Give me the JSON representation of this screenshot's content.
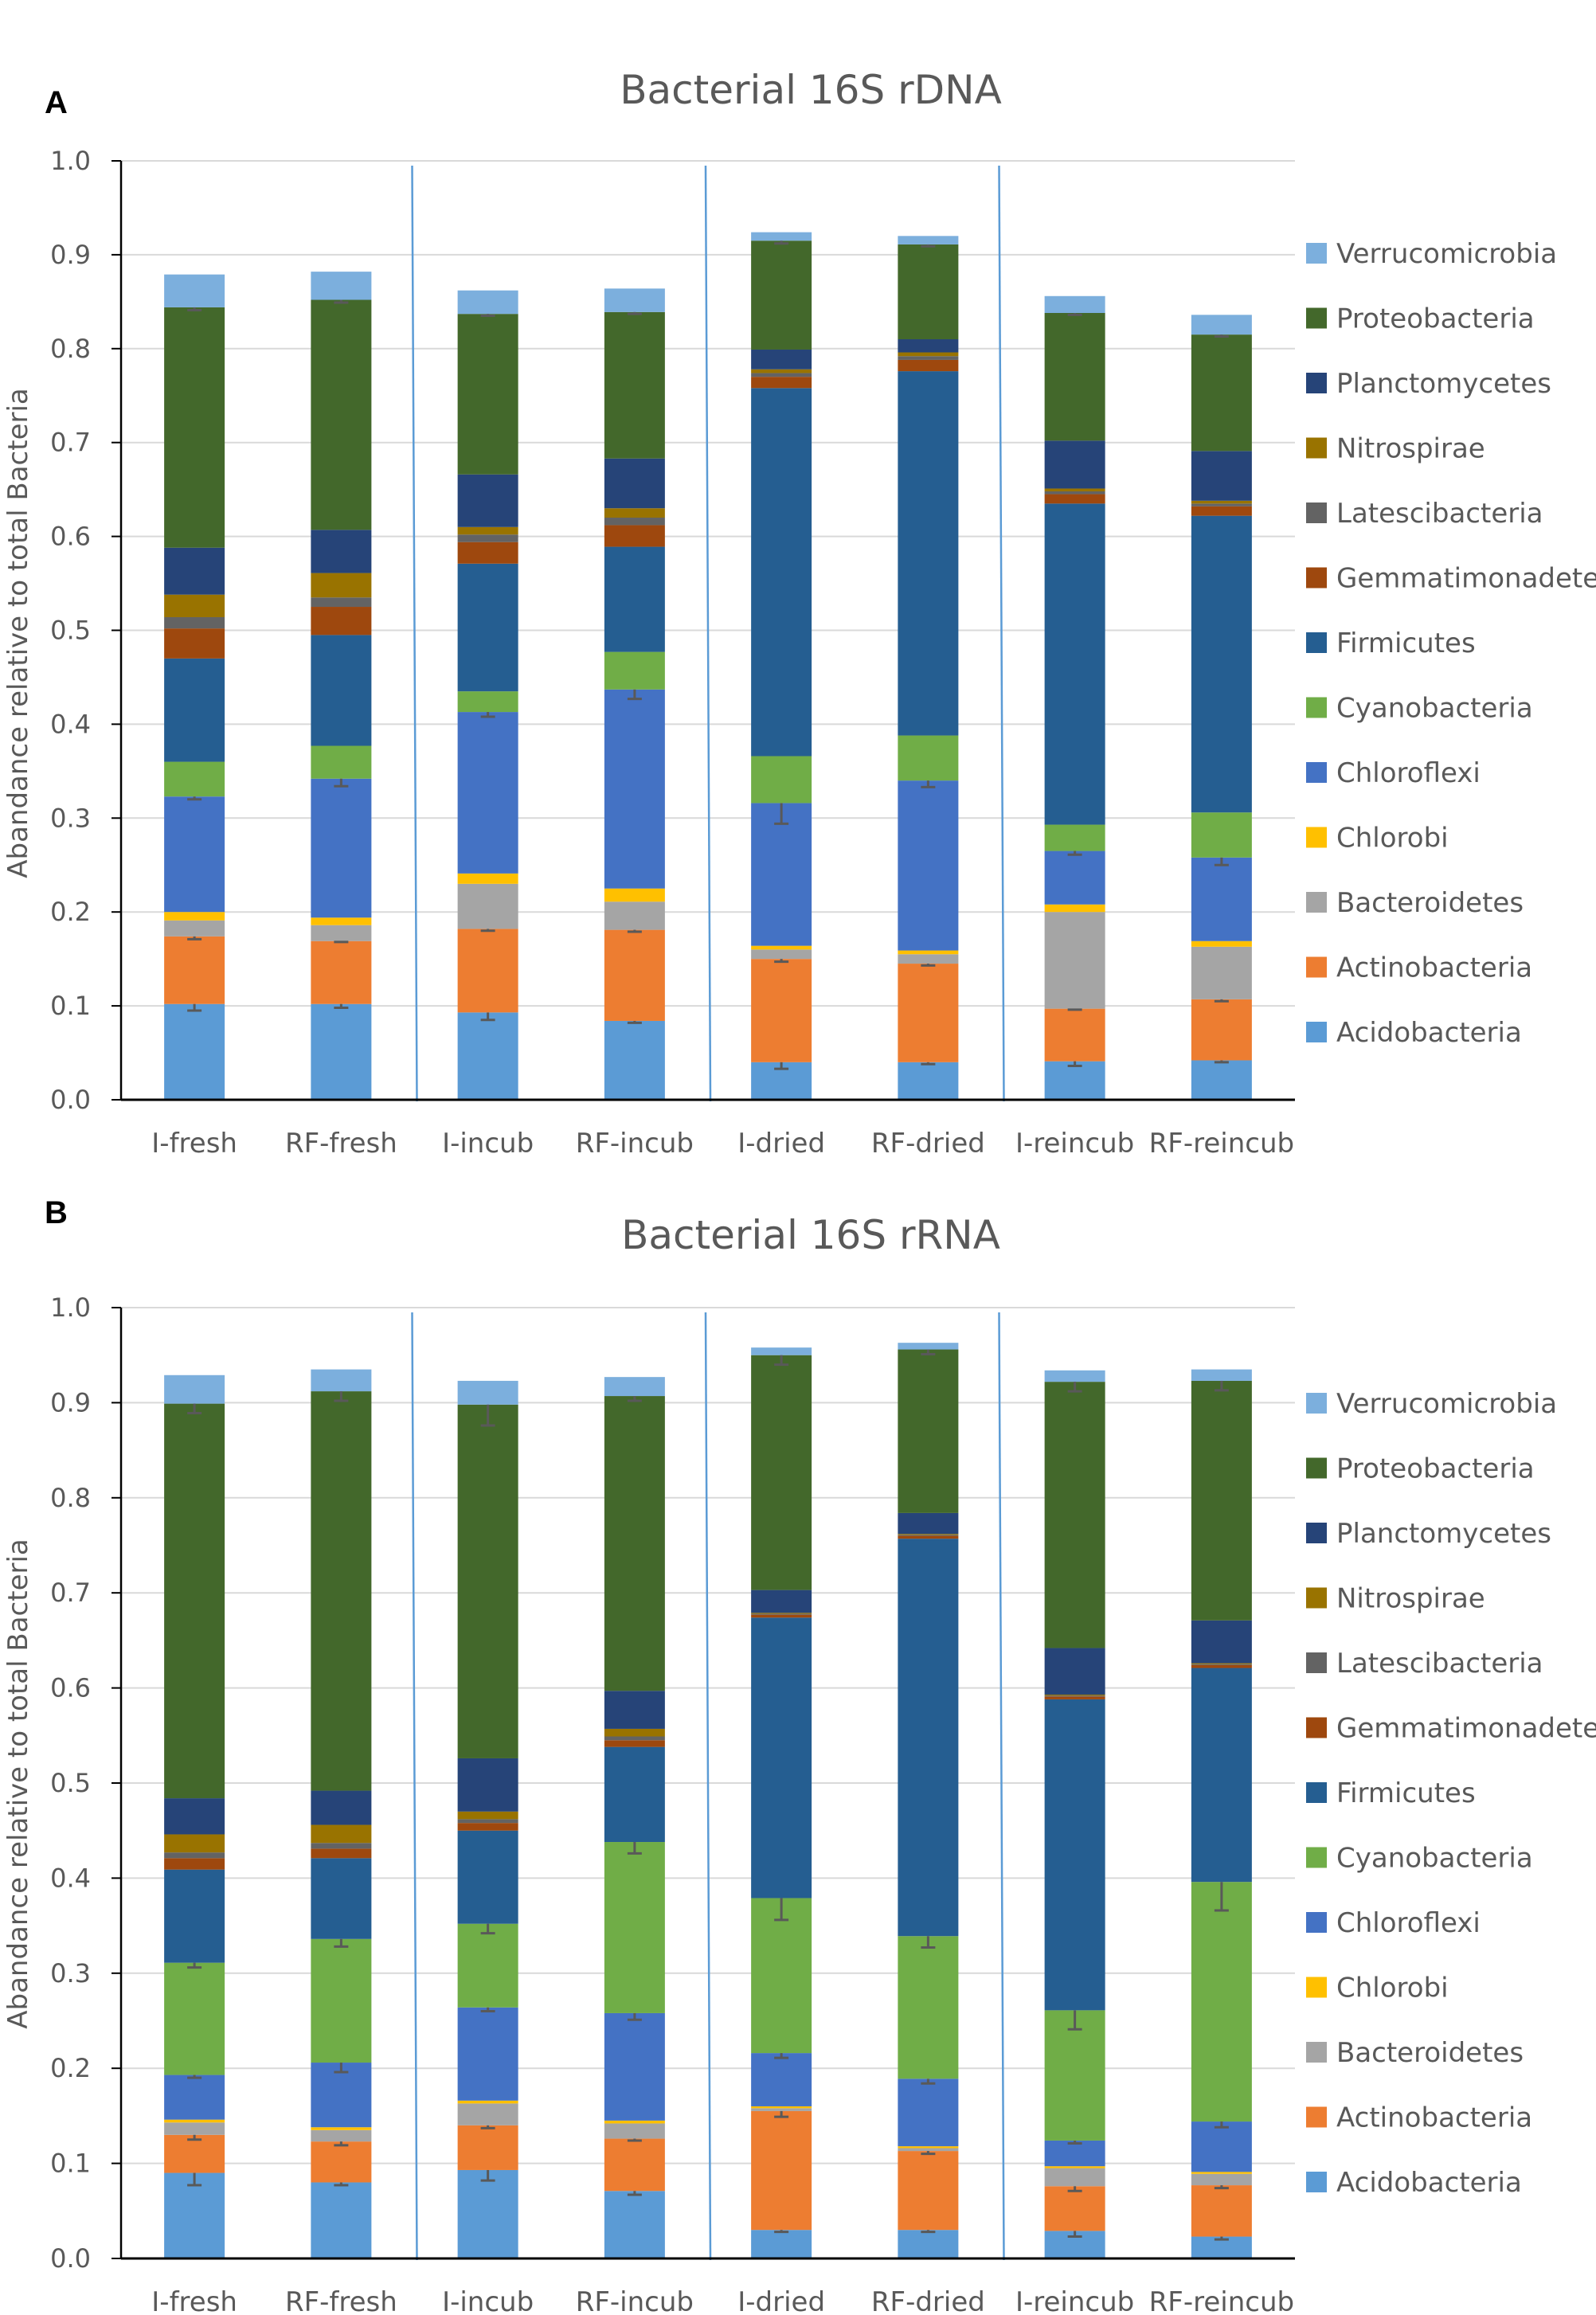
{
  "chart_data": [
    {
      "panel": "A",
      "type": "bar",
      "stacked": true,
      "title": "Bacterial 16S rDNA",
      "ylabel": "Abandance relative to total Bacteria",
      "xlabel": "",
      "ylim": [
        0,
        1.0
      ],
      "yticks": [
        "0.0",
        "0.1",
        "0.2",
        "0.3",
        "0.4",
        "0.5",
        "0.6",
        "0.7",
        "0.8",
        "0.9",
        "1.0"
      ],
      "grid": true,
      "legend_position": "right",
      "categories": [
        "I-fresh",
        "RF-fresh",
        "I-incub",
        "RF-incub",
        "I-dried",
        "RF-dried",
        "I-reincub",
        "RF-reincub"
      ],
      "group_separators_after": [
        1,
        3,
        5
      ],
      "series": [
        {
          "name": "Acidobacteria",
          "color": "#5B9BD5",
          "values": [
            0.102,
            0.102,
            0.093,
            0.084,
            0.04,
            0.04,
            0.041,
            0.042
          ],
          "errors": [
            0.007,
            0.004,
            0.008,
            0.002,
            0.007,
            0.002,
            0.005,
            0.002
          ]
        },
        {
          "name": "Actinobacteria",
          "color": "#ED7D31",
          "values": [
            0.072,
            0.067,
            0.089,
            0.097,
            0.11,
            0.105,
            0.056,
            0.065
          ],
          "errors": [
            0.003,
            0.001,
            0.002,
            0.002,
            0.003,
            0.002,
            0.001,
            0.002
          ]
        },
        {
          "name": "Bacteroidetes",
          "color": "#A5A5A5",
          "values": [
            0.017,
            0.017,
            0.048,
            0.03,
            0.01,
            0.01,
            0.103,
            0.056
          ],
          "errors": [
            0,
            0,
            0,
            0,
            0,
            0,
            0,
            0
          ]
        },
        {
          "name": "Chlorobi",
          "color": "#FFC000",
          "values": [
            0.009,
            0.008,
            0.011,
            0.014,
            0.004,
            0.004,
            0.008,
            0.006
          ],
          "errors": [
            0,
            0,
            0,
            0,
            0,
            0,
            0,
            0
          ]
        },
        {
          "name": "Chloroflexi",
          "color": "#4472C4",
          "values": [
            0.123,
            0.148,
            0.172,
            0.212,
            0.152,
            0.181,
            0.057,
            0.089
          ],
          "errors": [
            0.003,
            0.008,
            0.005,
            0.01,
            0.022,
            0.007,
            0.004,
            0.008
          ]
        },
        {
          "name": "Cyanobacteria",
          "color": "#70AD47",
          "values": [
            0.037,
            0.035,
            0.022,
            0.04,
            0.05,
            0.048,
            0.028,
            0.048
          ],
          "errors": [
            0,
            0,
            0,
            0,
            0,
            0,
            0,
            0
          ]
        },
        {
          "name": "Firmicutes",
          "color": "#255E91",
          "values": [
            0.11,
            0.118,
            0.136,
            0.112,
            0.392,
            0.388,
            0.342,
            0.316
          ],
          "errors": [
            0,
            0,
            0,
            0,
            0,
            0,
            0,
            0
          ]
        },
        {
          "name": "Gemmatimonadetes",
          "color": "#9E480E",
          "values": [
            0.032,
            0.03,
            0.023,
            0.023,
            0.012,
            0.012,
            0.01,
            0.01
          ],
          "errors": [
            0,
            0,
            0,
            0,
            0,
            0,
            0,
            0
          ]
        },
        {
          "name": "Latescibacteria",
          "color": "#636363",
          "values": [
            0.012,
            0.01,
            0.008,
            0.008,
            0.004,
            0.004,
            0.003,
            0.003
          ],
          "errors": [
            0,
            0,
            0,
            0,
            0,
            0,
            0,
            0
          ]
        },
        {
          "name": "Nitrospirae",
          "color": "#997300",
          "values": [
            0.024,
            0.026,
            0.008,
            0.01,
            0.004,
            0.004,
            0.003,
            0.003
          ],
          "errors": [
            0,
            0,
            0,
            0,
            0,
            0,
            0,
            0
          ]
        },
        {
          "name": "Planctomycetes",
          "color": "#264478",
          "values": [
            0.05,
            0.046,
            0.056,
            0.053,
            0.021,
            0.014,
            0.051,
            0.053
          ],
          "errors": [
            0,
            0,
            0,
            0,
            0,
            0,
            0,
            0
          ]
        },
        {
          "name": "Proteobacteria",
          "color": "#43682B",
          "values": [
            0.256,
            0.245,
            0.171,
            0.156,
            0.116,
            0.101,
            0.136,
            0.124
          ],
          "errors": [
            0.003,
            0.003,
            0.002,
            0.002,
            0.003,
            0.002,
            0.002,
            0.002
          ]
        },
        {
          "name": "Verrucomicrobia",
          "color": "#7CAFDD",
          "values": [
            0.035,
            0.03,
            0.025,
            0.025,
            0.009,
            0.009,
            0.018,
            0.021
          ],
          "errors": [
            0,
            0,
            0,
            0,
            0,
            0,
            0,
            0
          ]
        }
      ]
    },
    {
      "panel": "B",
      "type": "bar",
      "stacked": true,
      "title": "Bacterial 16S rRNA",
      "ylabel": "Abandance relative to total Bacteria",
      "xlabel": "",
      "ylim": [
        0,
        1.0
      ],
      "yticks": [
        "0.0",
        "0.1",
        "0.2",
        "0.3",
        "0.4",
        "0.5",
        "0.6",
        "0.7",
        "0.8",
        "0.9",
        "1.0"
      ],
      "grid": true,
      "legend_position": "right",
      "categories": [
        "I-fresh",
        "RF-fresh",
        "I-incub",
        "RF-incub",
        "I-dried",
        "RF-dried",
        "I-reincub",
        "RF-reincub"
      ],
      "group_separators_after": [
        1,
        3,
        5
      ],
      "series": [
        {
          "name": "Acidobacteria",
          "color": "#5B9BD5",
          "values": [
            0.09,
            0.08,
            0.093,
            0.071,
            0.03,
            0.03,
            0.029,
            0.023
          ],
          "errors": [
            0.013,
            0.003,
            0.011,
            0.004,
            0.002,
            0.002,
            0.006,
            0.003
          ]
        },
        {
          "name": "Actinobacteria",
          "color": "#ED7D31",
          "values": [
            0.04,
            0.043,
            0.047,
            0.055,
            0.125,
            0.083,
            0.047,
            0.054
          ],
          "errors": [
            0.005,
            0.004,
            0.003,
            0.002,
            0.006,
            0.003,
            0.005,
            0.003
          ]
        },
        {
          "name": "Bacteroidetes",
          "color": "#A5A5A5",
          "values": [
            0.013,
            0.012,
            0.023,
            0.016,
            0.003,
            0.003,
            0.019,
            0.012
          ],
          "errors": [
            0,
            0,
            0,
            0,
            0,
            0,
            0,
            0
          ]
        },
        {
          "name": "Chlorobi",
          "color": "#FFC000",
          "values": [
            0.003,
            0.003,
            0.003,
            0.003,
            0.002,
            0.002,
            0.002,
            0.002
          ],
          "errors": [
            0,
            0,
            0,
            0,
            0,
            0,
            0,
            0
          ]
        },
        {
          "name": "Chloroflexi",
          "color": "#4472C4",
          "values": [
            0.047,
            0.068,
            0.098,
            0.113,
            0.056,
            0.071,
            0.027,
            0.053
          ],
          "errors": [
            0.003,
            0.01,
            0.004,
            0.007,
            0.005,
            0.005,
            0.003,
            0.006
          ]
        },
        {
          "name": "Cyanobacteria",
          "color": "#70AD47",
          "values": [
            0.118,
            0.13,
            0.088,
            0.18,
            0.163,
            0.15,
            0.137,
            0.252
          ],
          "errors": [
            0.005,
            0.008,
            0.01,
            0.012,
            0.023,
            0.012,
            0.02,
            0.03
          ]
        },
        {
          "name": "Firmicutes",
          "color": "#255E91",
          "values": [
            0.098,
            0.085,
            0.098,
            0.1,
            0.295,
            0.418,
            0.327,
            0.225
          ],
          "errors": [
            0,
            0,
            0,
            0,
            0,
            0,
            0,
            0
          ]
        },
        {
          "name": "Gemmatimonadetes",
          "color": "#9E480E",
          "values": [
            0.012,
            0.01,
            0.008,
            0.007,
            0.003,
            0.003,
            0.003,
            0.003
          ],
          "errors": [
            0,
            0,
            0,
            0,
            0,
            0,
            0,
            0
          ]
        },
        {
          "name": "Latescibacteria",
          "color": "#636363",
          "values": [
            0.006,
            0.006,
            0.004,
            0.004,
            0.001,
            0.001,
            0.001,
            0.001
          ],
          "errors": [
            0,
            0,
            0,
            0,
            0,
            0,
            0,
            0
          ]
        },
        {
          "name": "Nitrospirae",
          "color": "#997300",
          "values": [
            0.019,
            0.019,
            0.008,
            0.008,
            0.001,
            0.001,
            0.001,
            0.001
          ],
          "errors": [
            0,
            0,
            0,
            0,
            0,
            0,
            0,
            0
          ]
        },
        {
          "name": "Planctomycetes",
          "color": "#264478",
          "values": [
            0.038,
            0.036,
            0.056,
            0.04,
            0.024,
            0.022,
            0.049,
            0.045
          ],
          "errors": [
            0,
            0,
            0,
            0,
            0,
            0,
            0,
            0
          ]
        },
        {
          "name": "Proteobacteria",
          "color": "#43682B",
          "values": [
            0.415,
            0.42,
            0.372,
            0.31,
            0.247,
            0.172,
            0.28,
            0.252
          ],
          "errors": [
            0.01,
            0.01,
            0.022,
            0.005,
            0.01,
            0.005,
            0.01,
            0.01
          ]
        },
        {
          "name": "Verrucomicrobia",
          "color": "#7CAFDD",
          "values": [
            0.03,
            0.023,
            0.025,
            0.02,
            0.008,
            0.007,
            0.012,
            0.012
          ],
          "errors": [
            0,
            0,
            0,
            0,
            0,
            0,
            0,
            0
          ]
        }
      ]
    }
  ]
}
